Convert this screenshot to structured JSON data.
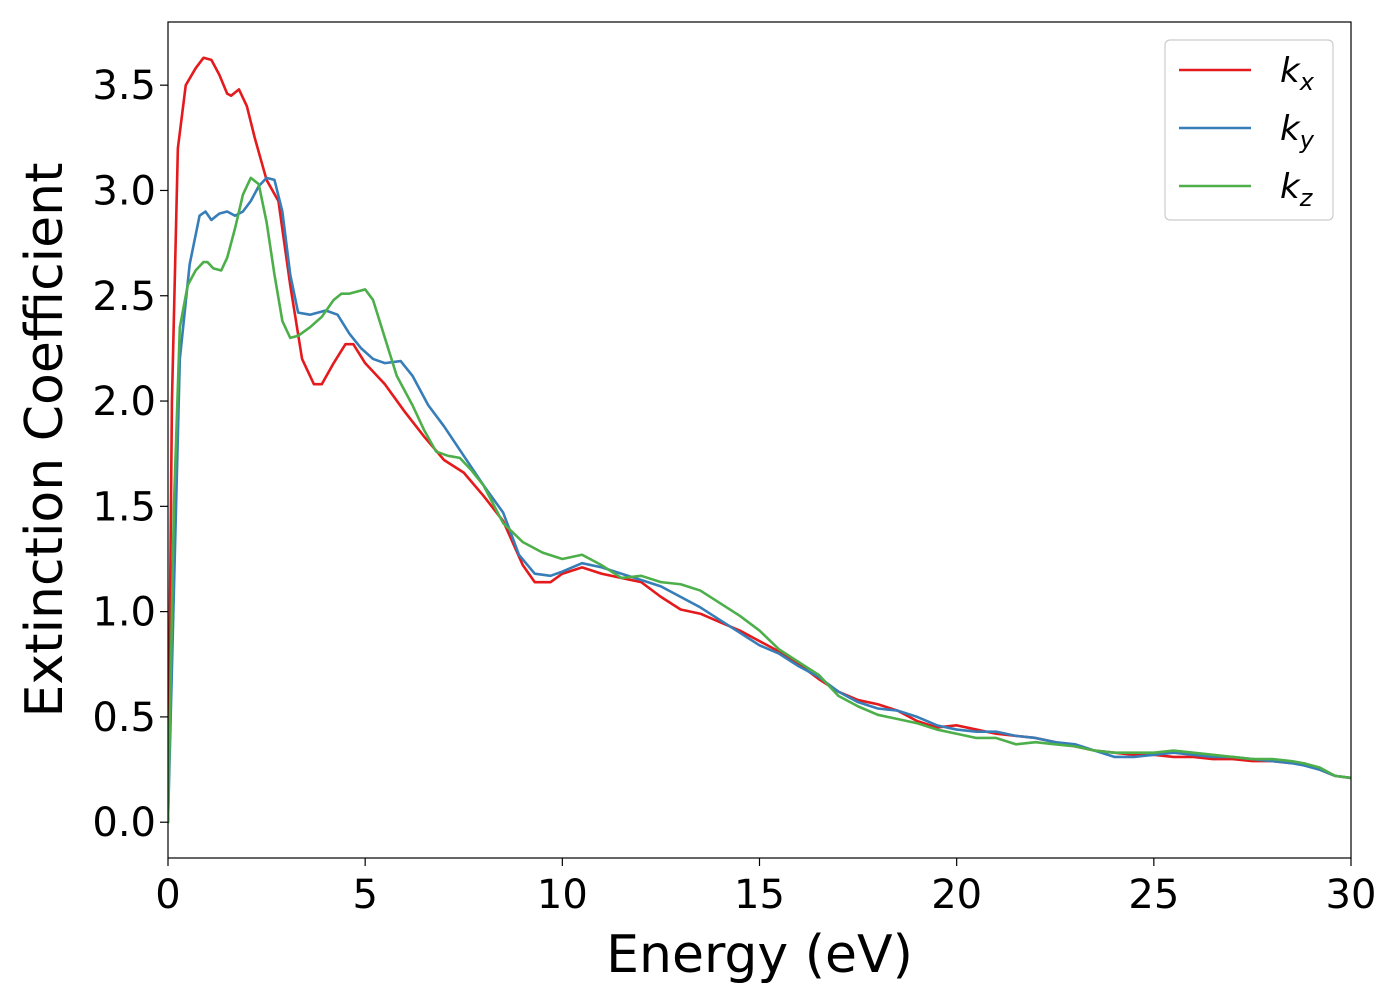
{
  "chart_data": {
    "type": "line",
    "title": "",
    "xlabel": "Energy (eV)",
    "ylabel": "Extinction Coefficient",
    "xlim": [
      0,
      30
    ],
    "ylim": [
      -0.17,
      3.8
    ],
    "xticks": [
      0,
      5,
      10,
      15,
      20,
      25,
      30
    ],
    "xtick_labels": [
      "0",
      "5",
      "10",
      "15",
      "20",
      "25",
      "30"
    ],
    "yticks": [
      0.0,
      0.5,
      1.0,
      1.5,
      2.0,
      2.5,
      3.0,
      3.5
    ],
    "ytick_labels": [
      "0.0",
      "0.5",
      "1.0",
      "1.5",
      "2.0",
      "2.5",
      "3.0",
      "3.5"
    ],
    "grid": false,
    "legend_position": "top-right",
    "series": [
      {
        "name": "k",
        "subscript": "x",
        "color": "#e41a1c",
        "x": [
          0,
          0.1,
          0.25,
          0.45,
          0.7,
          0.9,
          1.1,
          1.3,
          1.5,
          1.6,
          1.8,
          2.0,
          2.2,
          2.5,
          2.8,
          3.1,
          3.4,
          3.7,
          3.9,
          4.2,
          4.5,
          4.7,
          5.0,
          5.5,
          6.0,
          6.5,
          7.0,
          7.5,
          8.0,
          8.5,
          9.0,
          9.3,
          9.7,
          10.0,
          10.5,
          11.0,
          11.5,
          12.0,
          12.5,
          13.0,
          13.5,
          14.0,
          14.5,
          15.0,
          15.5,
          16.0,
          16.5,
          17.0,
          17.5,
          18.0,
          18.5,
          19.0,
          19.5,
          20.0,
          20.5,
          21.0,
          21.5,
          22.0,
          22.5,
          23.0,
          23.5,
          24.0,
          24.5,
          25.0,
          25.5,
          26.0,
          26.5,
          27.0,
          27.5,
          28.0,
          28.5,
          28.8,
          29.2,
          29.6,
          30.0
        ],
        "values": [
          0.0,
          2.0,
          3.2,
          3.5,
          3.58,
          3.63,
          3.62,
          3.55,
          3.46,
          3.45,
          3.48,
          3.4,
          3.25,
          3.05,
          2.95,
          2.55,
          2.2,
          2.08,
          2.08,
          2.18,
          2.27,
          2.27,
          2.18,
          2.08,
          1.95,
          1.83,
          1.72,
          1.66,
          1.55,
          1.43,
          1.22,
          1.14,
          1.14,
          1.18,
          1.21,
          1.18,
          1.16,
          1.14,
          1.07,
          1.01,
          0.99,
          0.95,
          0.91,
          0.86,
          0.81,
          0.75,
          0.68,
          0.62,
          0.58,
          0.56,
          0.53,
          0.48,
          0.45,
          0.46,
          0.44,
          0.42,
          0.41,
          0.4,
          0.38,
          0.36,
          0.34,
          0.33,
          0.32,
          0.32,
          0.31,
          0.31,
          0.3,
          0.3,
          0.29,
          0.29,
          0.28,
          0.28,
          0.25,
          0.22,
          0.21
        ]
      },
      {
        "name": "k",
        "subscript": "y",
        "color": "#377eb8",
        "x": [
          0,
          0.15,
          0.3,
          0.55,
          0.8,
          0.95,
          1.1,
          1.3,
          1.5,
          1.7,
          1.9,
          2.1,
          2.3,
          2.5,
          2.7,
          2.9,
          3.1,
          3.3,
          3.6,
          4.0,
          4.3,
          4.6,
          4.9,
          5.2,
          5.5,
          5.9,
          6.2,
          6.6,
          7.0,
          7.5,
          8.0,
          8.5,
          8.9,
          9.3,
          9.7,
          10.0,
          10.5,
          11.0,
          11.5,
          12.0,
          12.5,
          13.0,
          13.5,
          14.0,
          14.5,
          15.0,
          15.5,
          16.0,
          16.5,
          17.0,
          17.5,
          18.0,
          18.5,
          19.0,
          19.5,
          20.0,
          20.5,
          21.0,
          21.5,
          22.0,
          22.5,
          23.0,
          23.5,
          24.0,
          24.5,
          25.0,
          25.5,
          26.0,
          26.5,
          27.0,
          27.5,
          28.0,
          28.5,
          28.8,
          29.2,
          29.6,
          30.0
        ],
        "values": [
          0.0,
          1.1,
          2.2,
          2.65,
          2.88,
          2.9,
          2.86,
          2.89,
          2.9,
          2.88,
          2.9,
          2.95,
          3.02,
          3.06,
          3.05,
          2.9,
          2.6,
          2.42,
          2.41,
          2.43,
          2.41,
          2.32,
          2.25,
          2.2,
          2.18,
          2.19,
          2.12,
          1.98,
          1.88,
          1.74,
          1.6,
          1.47,
          1.27,
          1.18,
          1.17,
          1.19,
          1.23,
          1.21,
          1.18,
          1.15,
          1.12,
          1.07,
          1.02,
          0.96,
          0.9,
          0.84,
          0.8,
          0.74,
          0.69,
          0.62,
          0.57,
          0.54,
          0.53,
          0.5,
          0.46,
          0.44,
          0.43,
          0.43,
          0.41,
          0.4,
          0.38,
          0.37,
          0.34,
          0.31,
          0.31,
          0.32,
          0.33,
          0.32,
          0.31,
          0.31,
          0.3,
          0.29,
          0.28,
          0.27,
          0.25,
          0.22,
          0.21
        ]
      },
      {
        "name": "k",
        "subscript": "z",
        "color": "#4daf4a",
        "x": [
          0,
          0.15,
          0.3,
          0.5,
          0.7,
          0.9,
          1.0,
          1.15,
          1.35,
          1.5,
          1.7,
          1.9,
          2.1,
          2.3,
          2.5,
          2.7,
          2.9,
          3.1,
          3.3,
          3.6,
          3.9,
          4.2,
          4.4,
          4.6,
          4.8,
          5.0,
          5.2,
          5.5,
          5.8,
          6.2,
          6.5,
          6.8,
          7.1,
          7.4,
          7.7,
          8.0,
          8.5,
          9.0,
          9.5,
          10.0,
          10.5,
          11.0,
          11.5,
          12.0,
          12.5,
          13.0,
          13.5,
          14.0,
          14.5,
          15.0,
          15.5,
          16.0,
          16.5,
          17.0,
          17.5,
          18.0,
          18.5,
          19.0,
          19.5,
          20.0,
          20.5,
          21.0,
          21.5,
          22.0,
          22.5,
          23.0,
          23.5,
          24.0,
          24.5,
          25.0,
          25.5,
          26.0,
          26.5,
          27.0,
          27.5,
          28.0,
          28.5,
          28.8,
          29.2,
          29.6,
          30.0
        ],
        "values": [
          0.0,
          1.5,
          2.35,
          2.55,
          2.62,
          2.66,
          2.66,
          2.63,
          2.62,
          2.68,
          2.82,
          2.98,
          3.06,
          3.03,
          2.85,
          2.6,
          2.38,
          2.3,
          2.31,
          2.35,
          2.4,
          2.48,
          2.51,
          2.51,
          2.52,
          2.53,
          2.48,
          2.3,
          2.12,
          1.98,
          1.86,
          1.76,
          1.74,
          1.73,
          1.67,
          1.6,
          1.42,
          1.33,
          1.28,
          1.25,
          1.27,
          1.22,
          1.16,
          1.17,
          1.14,
          1.13,
          1.1,
          1.04,
          0.98,
          0.91,
          0.82,
          0.76,
          0.7,
          0.6,
          0.55,
          0.51,
          0.49,
          0.47,
          0.44,
          0.42,
          0.4,
          0.4,
          0.37,
          0.38,
          0.37,
          0.36,
          0.34,
          0.33,
          0.33,
          0.33,
          0.34,
          0.33,
          0.32,
          0.31,
          0.3,
          0.3,
          0.29,
          0.28,
          0.26,
          0.22,
          0.21
        ]
      }
    ]
  }
}
